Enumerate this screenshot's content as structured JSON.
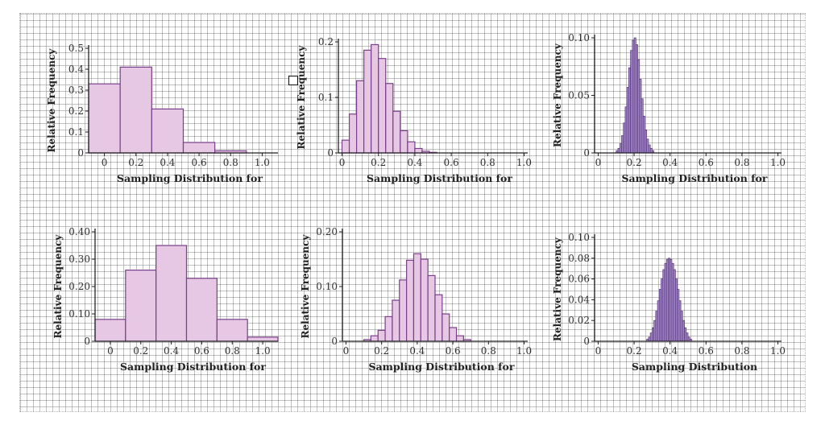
{
  "colors": {
    "bar_fill": "#e7c8e4",
    "bar_stroke": "#7a3f8a",
    "dense_fill": "#a78ac9",
    "dense_stroke": "#4f2f7a",
    "axis": "#222222"
  },
  "chart_data": [
    {
      "type": "bar",
      "xlabel": "Sampling Distribution for",
      "ylabel": "Relative Frequency",
      "xlim": [
        -0.1,
        1.1
      ],
      "ylim": [
        0,
        0.5
      ],
      "xticks": [
        "0",
        "0.2",
        "0.4",
        "0.6",
        "0.8",
        "1.0"
      ],
      "xtick_values": [
        0,
        0.2,
        0.4,
        0.6,
        0.8,
        1.0
      ],
      "yticks": [
        "0",
        "0.1",
        "0.2",
        "0.3",
        "0.4",
        "0.5"
      ],
      "ytick_values": [
        0,
        0.1,
        0.2,
        0.3,
        0.4,
        0.5
      ],
      "bins": [
        {
          "x0": -0.1,
          "x1": 0.1,
          "value": 0.33
        },
        {
          "x0": 0.1,
          "x1": 0.3,
          "value": 0.41
        },
        {
          "x0": 0.3,
          "x1": 0.5,
          "value": 0.21
        },
        {
          "x0": 0.5,
          "x1": 0.7,
          "value": 0.05
        },
        {
          "x0": 0.7,
          "x1": 0.9,
          "value": 0.01
        }
      ]
    },
    {
      "type": "bar",
      "xlabel": "Sampling Distribution for",
      "ylabel": "Relative Frequency",
      "xlim": [
        -0.02,
        1.02
      ],
      "ylim": [
        0,
        0.2
      ],
      "xticks": [
        "0",
        "0.2",
        "0.4",
        "0.6",
        "0.8",
        "1.0"
      ],
      "xtick_values": [
        0,
        0.2,
        0.4,
        0.6,
        0.8,
        1.0
      ],
      "yticks": [
        "0",
        "0.1",
        "0.2"
      ],
      "ytick_values": [
        0,
        0.1,
        0.2
      ],
      "bins": [
        {
          "x0": 0.0,
          "x1": 0.04,
          "value": 0.023
        },
        {
          "x0": 0.04,
          "x1": 0.08,
          "value": 0.07
        },
        {
          "x0": 0.08,
          "x1": 0.12,
          "value": 0.13
        },
        {
          "x0": 0.12,
          "x1": 0.16,
          "value": 0.185
        },
        {
          "x0": 0.16,
          "x1": 0.2,
          "value": 0.195
        },
        {
          "x0": 0.2,
          "x1": 0.24,
          "value": 0.17
        },
        {
          "x0": 0.24,
          "x1": 0.28,
          "value": 0.125
        },
        {
          "x0": 0.28,
          "x1": 0.32,
          "value": 0.075
        },
        {
          "x0": 0.32,
          "x1": 0.36,
          "value": 0.04
        },
        {
          "x0": 0.36,
          "x1": 0.4,
          "value": 0.02
        },
        {
          "x0": 0.4,
          "x1": 0.44,
          "value": 0.008
        },
        {
          "x0": 0.44,
          "x1": 0.48,
          "value": 0.003
        },
        {
          "x0": 0.48,
          "x1": 0.52,
          "value": 0.001
        }
      ]
    },
    {
      "type": "bar",
      "dense": true,
      "xlabel": "Sampling Distribution for",
      "ylabel": "Relative Frequency",
      "xlim": [
        -0.02,
        1.02
      ],
      "ylim": [
        0,
        0.1
      ],
      "xticks": [
        "0",
        "0.2",
        "0.4",
        "0.6",
        "0.8",
        "1.0"
      ],
      "xtick_values": [
        0,
        0.2,
        0.4,
        0.6,
        0.8,
        1.0
      ],
      "yticks": [
        "0",
        "0.05",
        "0.10"
      ],
      "ytick_values": [
        0,
        0.05,
        0.1
      ],
      "bins": [
        {
          "x0": 0.1,
          "x1": 0.11,
          "value": 0.002
        },
        {
          "x0": 0.11,
          "x1": 0.12,
          "value": 0.004
        },
        {
          "x0": 0.12,
          "x1": 0.13,
          "value": 0.008
        },
        {
          "x0": 0.13,
          "x1": 0.14,
          "value": 0.015
        },
        {
          "x0": 0.14,
          "x1": 0.15,
          "value": 0.026
        },
        {
          "x0": 0.15,
          "x1": 0.16,
          "value": 0.04
        },
        {
          "x0": 0.16,
          "x1": 0.17,
          "value": 0.057
        },
        {
          "x0": 0.17,
          "x1": 0.18,
          "value": 0.074
        },
        {
          "x0": 0.18,
          "x1": 0.19,
          "value": 0.089
        },
        {
          "x0": 0.19,
          "x1": 0.2,
          "value": 0.098
        },
        {
          "x0": 0.2,
          "x1": 0.21,
          "value": 0.1
        },
        {
          "x0": 0.21,
          "x1": 0.22,
          "value": 0.094
        },
        {
          "x0": 0.22,
          "x1": 0.23,
          "value": 0.081
        },
        {
          "x0": 0.23,
          "x1": 0.24,
          "value": 0.064
        },
        {
          "x0": 0.24,
          "x1": 0.25,
          "value": 0.047
        },
        {
          "x0": 0.25,
          "x1": 0.26,
          "value": 0.032
        },
        {
          "x0": 0.26,
          "x1": 0.27,
          "value": 0.02
        },
        {
          "x0": 0.27,
          "x1": 0.28,
          "value": 0.012
        },
        {
          "x0": 0.28,
          "x1": 0.29,
          "value": 0.007
        },
        {
          "x0": 0.29,
          "x1": 0.3,
          "value": 0.004
        },
        {
          "x0": 0.3,
          "x1": 0.31,
          "value": 0.002
        }
      ]
    },
    {
      "type": "bar",
      "xlabel": "Sampling Distribution for",
      "ylabel": "Relative Frequency",
      "xlim": [
        -0.1,
        1.1
      ],
      "ylim": [
        0,
        0.4
      ],
      "xticks": [
        "0",
        "0.2",
        "0.4",
        "0.6",
        "0.8",
        "1.0"
      ],
      "xtick_values": [
        0,
        0.2,
        0.4,
        0.6,
        0.8,
        1.0
      ],
      "yticks": [
        "0",
        "0.10",
        "0.20",
        "0.30",
        "0.40"
      ],
      "ytick_values": [
        0,
        0.1,
        0.2,
        0.3,
        0.4
      ],
      "bins": [
        {
          "x0": -0.1,
          "x1": 0.1,
          "value": 0.08
        },
        {
          "x0": 0.1,
          "x1": 0.3,
          "value": 0.26
        },
        {
          "x0": 0.3,
          "x1": 0.5,
          "value": 0.35
        },
        {
          "x0": 0.5,
          "x1": 0.7,
          "value": 0.23
        },
        {
          "x0": 0.7,
          "x1": 0.9,
          "value": 0.08
        },
        {
          "x0": 0.9,
          "x1": 1.1,
          "value": 0.015
        }
      ]
    },
    {
      "type": "bar",
      "xlabel": "Sampling Distribution for",
      "ylabel": "Relative Frequency",
      "xlim": [
        -0.02,
        1.02
      ],
      "ylim": [
        0,
        0.2
      ],
      "xticks": [
        "0",
        "0.2",
        "0.4",
        "0.6",
        "0.8",
        "1.0"
      ],
      "xtick_values": [
        0,
        0.2,
        0.4,
        0.6,
        0.8,
        1.0
      ],
      "yticks": [
        "0",
        "0.10",
        "0.20"
      ],
      "ytick_values": [
        0,
        0.1,
        0.2
      ],
      "bins": [
        {
          "x0": 0.1,
          "x1": 0.14,
          "value": 0.003
        },
        {
          "x0": 0.14,
          "x1": 0.18,
          "value": 0.01
        },
        {
          "x0": 0.18,
          "x1": 0.22,
          "value": 0.02
        },
        {
          "x0": 0.22,
          "x1": 0.26,
          "value": 0.045
        },
        {
          "x0": 0.26,
          "x1": 0.3,
          "value": 0.075
        },
        {
          "x0": 0.3,
          "x1": 0.34,
          "value": 0.112
        },
        {
          "x0": 0.34,
          "x1": 0.38,
          "value": 0.148
        },
        {
          "x0": 0.38,
          "x1": 0.42,
          "value": 0.16
        },
        {
          "x0": 0.42,
          "x1": 0.46,
          "value": 0.15
        },
        {
          "x0": 0.46,
          "x1": 0.5,
          "value": 0.12
        },
        {
          "x0": 0.5,
          "x1": 0.54,
          "value": 0.085
        },
        {
          "x0": 0.54,
          "x1": 0.58,
          "value": 0.05
        },
        {
          "x0": 0.58,
          "x1": 0.62,
          "value": 0.025
        },
        {
          "x0": 0.62,
          "x1": 0.66,
          "value": 0.01
        },
        {
          "x0": 0.66,
          "x1": 0.7,
          "value": 0.003
        }
      ]
    },
    {
      "type": "bar",
      "dense": true,
      "xlabel": "Sampling Distribution",
      "ylabel": "Relative Frequency",
      "xlim": [
        -0.02,
        1.02
      ],
      "ylim": [
        0,
        0.1
      ],
      "xticks": [
        "0",
        "0.2",
        "0.4",
        "0.6",
        "0.8",
        "1.0"
      ],
      "xtick_values": [
        0,
        0.2,
        0.4,
        0.6,
        0.8,
        1.0
      ],
      "yticks": [
        "0",
        "0.02",
        "0.04",
        "0.06",
        "0.08",
        "0.10"
      ],
      "ytick_values": [
        0,
        0.02,
        0.04,
        0.06,
        0.08,
        0.1
      ],
      "bins": [
        {
          "x0": 0.27,
          "x1": 0.28,
          "value": 0.002
        },
        {
          "x0": 0.28,
          "x1": 0.29,
          "value": 0.004
        },
        {
          "x0": 0.29,
          "x1": 0.3,
          "value": 0.008
        },
        {
          "x0": 0.3,
          "x1": 0.31,
          "value": 0.013
        },
        {
          "x0": 0.31,
          "x1": 0.32,
          "value": 0.02
        },
        {
          "x0": 0.32,
          "x1": 0.33,
          "value": 0.029
        },
        {
          "x0": 0.33,
          "x1": 0.34,
          "value": 0.039
        },
        {
          "x0": 0.34,
          "x1": 0.35,
          "value": 0.05
        },
        {
          "x0": 0.35,
          "x1": 0.36,
          "value": 0.06
        },
        {
          "x0": 0.36,
          "x1": 0.37,
          "value": 0.069
        },
        {
          "x0": 0.37,
          "x1": 0.38,
          "value": 0.075
        },
        {
          "x0": 0.38,
          "x1": 0.39,
          "value": 0.079
        },
        {
          "x0": 0.39,
          "x1": 0.4,
          "value": 0.08
        },
        {
          "x0": 0.4,
          "x1": 0.41,
          "value": 0.079
        },
        {
          "x0": 0.41,
          "x1": 0.42,
          "value": 0.075
        },
        {
          "x0": 0.42,
          "x1": 0.43,
          "value": 0.069
        },
        {
          "x0": 0.43,
          "x1": 0.44,
          "value": 0.06
        },
        {
          "x0": 0.44,
          "x1": 0.45,
          "value": 0.05
        },
        {
          "x0": 0.45,
          "x1": 0.46,
          "value": 0.039
        },
        {
          "x0": 0.46,
          "x1": 0.47,
          "value": 0.029
        },
        {
          "x0": 0.47,
          "x1": 0.48,
          "value": 0.02
        },
        {
          "x0": 0.48,
          "x1": 0.49,
          "value": 0.013
        },
        {
          "x0": 0.49,
          "x1": 0.5,
          "value": 0.008
        },
        {
          "x0": 0.5,
          "x1": 0.51,
          "value": 0.004
        },
        {
          "x0": 0.51,
          "x1": 0.52,
          "value": 0.002
        }
      ]
    }
  ]
}
